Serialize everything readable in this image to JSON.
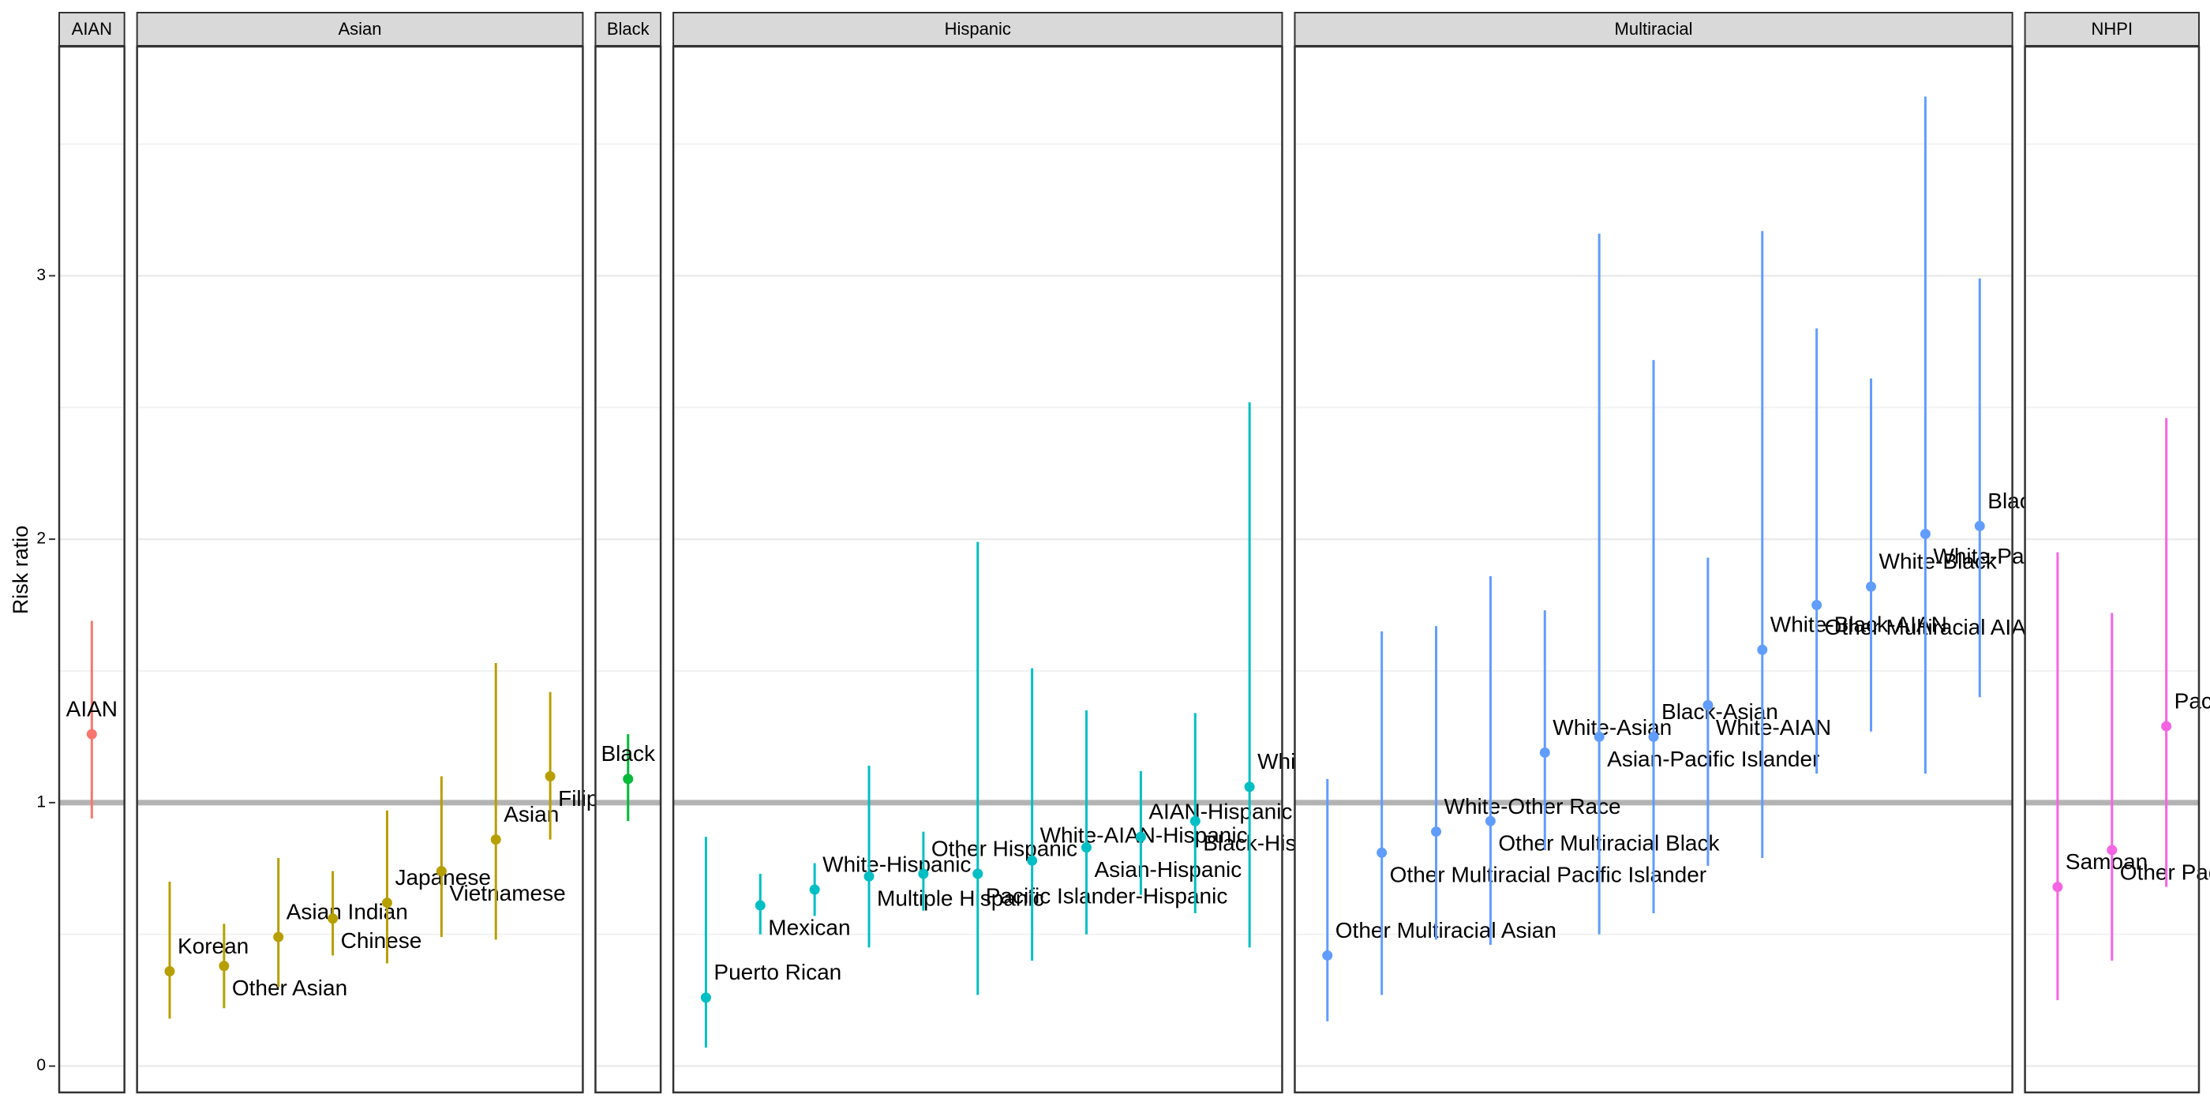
{
  "chart_data": {
    "type": "pointrange",
    "ylabel": "Risk ratio",
    "ylim": [
      -0.1,
      3.87
    ],
    "yticks": [
      0,
      1,
      2,
      3
    ],
    "minor_gridlines": [
      0.5,
      1.5,
      2.5,
      3.5
    ],
    "grid": true,
    "reference_line": 1,
    "facets": [
      {
        "name": "AIAN",
        "color": "#F8766D",
        "labels": [
          "AIAN"
        ],
        "values": [
          1.26
        ],
        "lower": [
          0.94
        ],
        "upper": [
          1.69
        ]
      },
      {
        "name": "Asian",
        "color": "#B79F00",
        "labels": [
          "Korean",
          "Other Asian",
          "Asian Indian",
          "Chinese",
          "Japanese",
          "Vietnamese",
          "Asian",
          "Filipino"
        ],
        "values": [
          0.36,
          0.38,
          0.49,
          0.56,
          0.62,
          0.74,
          0.86,
          1.1
        ],
        "lower": [
          0.18,
          0.22,
          0.3,
          0.42,
          0.39,
          0.49,
          0.48,
          0.86
        ],
        "upper": [
          0.7,
          0.54,
          0.79,
          0.74,
          0.97,
          1.1,
          1.53,
          1.42
        ]
      },
      {
        "name": "Black",
        "color": "#00BA38",
        "labels": [
          "Black"
        ],
        "values": [
          1.09
        ],
        "lower": [
          0.93
        ],
        "upper": [
          1.26
        ]
      },
      {
        "name": "Hispanic",
        "color": "#00BFC4",
        "labels": [
          "Puerto Rican",
          "Mexican",
          "White-Hispanic",
          "Multiple Hispanic",
          "Other Hispanic",
          "Pacific Islander-Hispanic",
          "White-AIAN-Hispanic",
          "Asian-Hispanic",
          "AIAN-Hispanic",
          "Black-Hispanic",
          "White-Black-Hispanic"
        ],
        "values": [
          0.26,
          0.61,
          0.67,
          0.72,
          0.73,
          0.73,
          0.78,
          0.83,
          0.87,
          0.93,
          1.06
        ],
        "lower": [
          0.07,
          0.5,
          0.57,
          0.45,
          0.59,
          0.27,
          0.4,
          0.5,
          0.65,
          0.58,
          0.45
        ],
        "upper": [
          0.87,
          0.73,
          0.77,
          1.14,
          0.89,
          1.99,
          1.51,
          1.35,
          1.12,
          1.34,
          2.52
        ]
      },
      {
        "name": "Multiracial",
        "color": "#619CFF",
        "labels": [
          "Other Multiracial Asian",
          "Other Multiracial Pacific Islander",
          "White-Other Race",
          "Other Multiracial Black",
          "White-Asian",
          "Asian-Pacific Islander",
          "Black-Asian",
          "White-AIAN",
          "White-Black-AIAN",
          "Other Multiracial AIAN",
          "White-Black",
          "White-Pacific Islander",
          "Black-AIAN"
        ],
        "values": [
          0.42,
          0.81,
          0.89,
          0.93,
          1.19,
          1.25,
          1.25,
          1.37,
          1.58,
          1.75,
          1.82,
          2.02,
          2.05
        ],
        "lower": [
          0.17,
          0.27,
          0.48,
          0.46,
          0.82,
          0.5,
          0.58,
          0.76,
          0.79,
          1.11,
          1.27,
          1.11,
          1.4
        ],
        "upper": [
          1.09,
          1.65,
          1.67,
          1.86,
          1.73,
          3.16,
          2.68,
          1.93,
          3.17,
          2.8,
          2.61,
          3.68,
          2.99
        ]
      },
      {
        "name": "NHPI",
        "color": "#F564E3",
        "labels": [
          "Samoan",
          "Other Pacific Islander",
          "Pacific Islander"
        ],
        "values": [
          0.68,
          0.82,
          1.29
        ],
        "lower": [
          0.25,
          0.4,
          0.68
        ],
        "upper": [
          1.95,
          1.72,
          2.46
        ]
      }
    ]
  }
}
